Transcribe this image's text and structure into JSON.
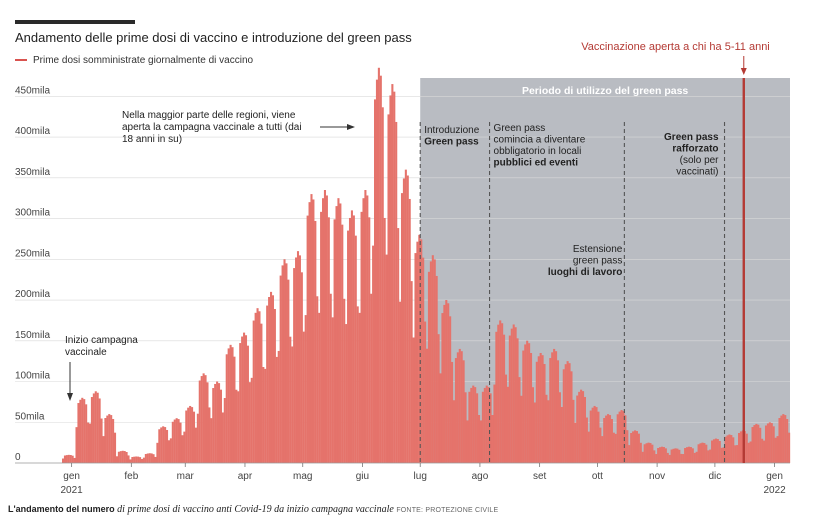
{
  "header": {
    "title": "Andamento delle prime dosi di vaccino e introduzione del green pass",
    "legend_label": "Prime dosi somministrate giornalmente di vaccino"
  },
  "caption": {
    "bold": "L'andamento del numero",
    "italic": "di prime dosi di vaccino anti Covid-19 da inizio campagna vaccinale",
    "source": "FONTE: PROTEZIONE CIVILE"
  },
  "colors": {
    "bars": "#e5736b",
    "band": "#b9bcc2",
    "accent_line": "#b43a34",
    "grid": "#d9d9d9"
  },
  "chart_data": {
    "type": "bar",
    "title": "Andamento delle prime dosi di vaccino e introduzione del green pass",
    "xlabel": "",
    "ylabel": "",
    "ylim": [
      0,
      470000
    ],
    "y_ticks": [
      0,
      50000,
      100000,
      150000,
      200000,
      250000,
      300000,
      350000,
      400000,
      450000
    ],
    "y_tick_labels": [
      "0",
      "50mila",
      "100mila",
      "150mila",
      "200mila",
      "250mila",
      "300mila",
      "350mila",
      "400mila",
      "450mila"
    ],
    "x_tick_labels": [
      {
        "date": "2021-01-01",
        "label": "gen",
        "label2": "2021"
      },
      {
        "date": "2021-02-01",
        "label": "feb"
      },
      {
        "date": "2021-03-01",
        "label": "mar"
      },
      {
        "date": "2021-04-01",
        "label": "apr"
      },
      {
        "date": "2021-05-01",
        "label": "mag"
      },
      {
        "date": "2021-06-01",
        "label": "giu"
      },
      {
        "date": "2021-07-01",
        "label": "lug"
      },
      {
        "date": "2021-08-01",
        "label": "ago"
      },
      {
        "date": "2021-09-01",
        "label": "set"
      },
      {
        "date": "2021-10-01",
        "label": "ott"
      },
      {
        "date": "2021-11-01",
        "label": "nov"
      },
      {
        "date": "2021-12-01",
        "label": "dic"
      },
      {
        "date": "2022-01-01",
        "label": "gen",
        "label2": "2022"
      }
    ],
    "x_range": [
      "2020-12-27",
      "2022-01-09"
    ],
    "series": [
      {
        "name": "Prime dosi somministrate giornalmente di vaccino",
        "weekly_peaks": [
          {
            "week_start": "2020-12-27",
            "value": 10000
          },
          {
            "week_start": "2021-01-03",
            "value": 80000
          },
          {
            "week_start": "2021-01-10",
            "value": 88000
          },
          {
            "week_start": "2021-01-17",
            "value": 60000
          },
          {
            "week_start": "2021-01-24",
            "value": 15000
          },
          {
            "week_start": "2021-01-31",
            "value": 8000
          },
          {
            "week_start": "2021-02-07",
            "value": 12000
          },
          {
            "week_start": "2021-02-14",
            "value": 45000
          },
          {
            "week_start": "2021-02-21",
            "value": 55000
          },
          {
            "week_start": "2021-02-28",
            "value": 70000
          },
          {
            "week_start": "2021-03-07",
            "value": 110000
          },
          {
            "week_start": "2021-03-14",
            "value": 100000
          },
          {
            "week_start": "2021-03-21",
            "value": 145000
          },
          {
            "week_start": "2021-03-28",
            "value": 160000
          },
          {
            "week_start": "2021-04-04",
            "value": 190000
          },
          {
            "week_start": "2021-04-11",
            "value": 210000
          },
          {
            "week_start": "2021-04-18",
            "value": 250000
          },
          {
            "week_start": "2021-04-25",
            "value": 260000
          },
          {
            "week_start": "2021-05-02",
            "value": 330000
          },
          {
            "week_start": "2021-05-09",
            "value": 335000
          },
          {
            "week_start": "2021-05-16",
            "value": 325000
          },
          {
            "week_start": "2021-05-23",
            "value": 310000
          },
          {
            "week_start": "2021-05-30",
            "value": 335000
          },
          {
            "week_start": "2021-06-06",
            "value": 485000
          },
          {
            "week_start": "2021-06-13",
            "value": 465000
          },
          {
            "week_start": "2021-06-20",
            "value": 360000
          },
          {
            "week_start": "2021-06-27",
            "value": 280000
          },
          {
            "week_start": "2021-07-04",
            "value": 255000
          },
          {
            "week_start": "2021-07-11",
            "value": 200000
          },
          {
            "week_start": "2021-07-18",
            "value": 140000
          },
          {
            "week_start": "2021-07-25",
            "value": 95000
          },
          {
            "week_start": "2021-08-01",
            "value": 95000
          },
          {
            "week_start": "2021-08-08",
            "value": 175000
          },
          {
            "week_start": "2021-08-15",
            "value": 170000
          },
          {
            "week_start": "2021-08-22",
            "value": 150000
          },
          {
            "week_start": "2021-08-29",
            "value": 135000
          },
          {
            "week_start": "2021-09-05",
            "value": 140000
          },
          {
            "week_start": "2021-09-12",
            "value": 125000
          },
          {
            "week_start": "2021-09-19",
            "value": 90000
          },
          {
            "week_start": "2021-09-26",
            "value": 70000
          },
          {
            "week_start": "2021-10-03",
            "value": 60000
          },
          {
            "week_start": "2021-10-10",
            "value": 65000
          },
          {
            "week_start": "2021-10-17",
            "value": 40000
          },
          {
            "week_start": "2021-10-24",
            "value": 25000
          },
          {
            "week_start": "2021-10-31",
            "value": 20000
          },
          {
            "week_start": "2021-11-07",
            "value": 18000
          },
          {
            "week_start": "2021-11-14",
            "value": 20000
          },
          {
            "week_start": "2021-11-21",
            "value": 25000
          },
          {
            "week_start": "2021-11-28",
            "value": 30000
          },
          {
            "week_start": "2021-12-05",
            "value": 35000
          },
          {
            "week_start": "2021-12-12",
            "value": 40000
          },
          {
            "week_start": "2021-12-19",
            "value": 48000
          },
          {
            "week_start": "2021-12-26",
            "value": 50000
          },
          {
            "week_start": "2022-01-02",
            "value": 60000
          }
        ]
      }
    ],
    "band": {
      "start": "2021-07-01",
      "end": "2022-01-09",
      "label": "Periodo di utilizzo del green pass"
    },
    "markers": [
      {
        "date": "2021-07-01",
        "style": "dashed",
        "lines": [
          {
            "text": "Introduzione",
            "bold": false
          },
          {
            "text": "Green pass",
            "bold": true
          }
        ]
      },
      {
        "date": "2021-08-06",
        "style": "dashed",
        "lines": [
          {
            "text": "Green pass",
            "bold": false
          },
          {
            "text": "comincia a diventare",
            "bold": false
          },
          {
            "text": "obbligatorio in locali",
            "bold": false
          },
          {
            "text": "pubblici ed eventi",
            "bold": true
          }
        ]
      },
      {
        "date": "2021-10-15",
        "style": "dashed",
        "lines": [
          {
            "text": "Estensione",
            "bold": false
          },
          {
            "text": "green pass",
            "bold": false
          },
          {
            "text": "luoghi di lavoro",
            "bold": true
          }
        ]
      },
      {
        "date": "2021-12-06",
        "style": "dashed",
        "lines": [
          {
            "text": "Green pass",
            "bold": true
          },
          {
            "text": "rafforzato",
            "bold": true
          },
          {
            "text": "(solo per",
            "bold": false
          },
          {
            "text": "vaccinati)",
            "bold": false
          }
        ]
      },
      {
        "date": "2021-12-16",
        "style": "solid",
        "label": "Vaccinazione aperta a chi ha 5-11 anni"
      }
    ],
    "annotations": [
      {
        "date": "2021-01-02",
        "lines": [
          "Inizio campagna",
          "vaccinale"
        ]
      },
      {
        "date": "2021-06-01",
        "lines": [
          "Nella maggior parte delle regioni, viene",
          "aperta la campagna vaccinale a tutti (dai",
          "18 anni in su)"
        ]
      }
    ]
  }
}
